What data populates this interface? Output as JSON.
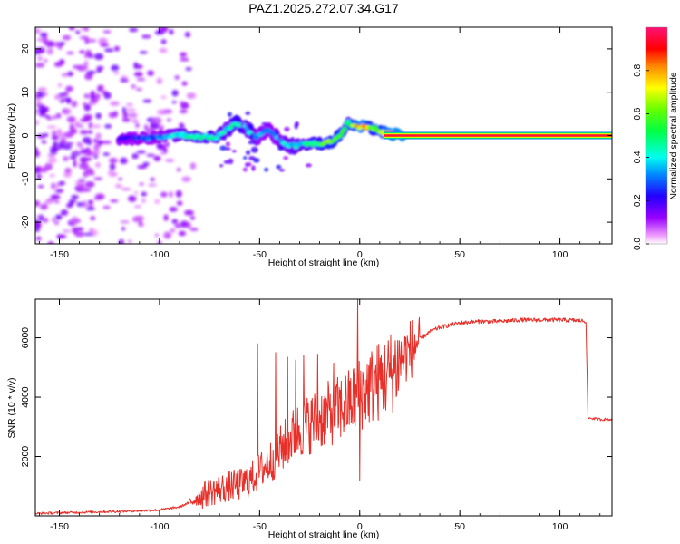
{
  "title": "PAZ1.2025.272.07.34.G17",
  "colors": {
    "snr_line": "#e8302a",
    "axis": "#000000"
  },
  "chart_data": [
    {
      "type": "heatmap",
      "name": "spectrogram",
      "xlabel": "Height of straight line (km)",
      "ylabel": "Frequency (Hz)",
      "xlim": [
        -162,
        126
      ],
      "ylim": [
        -25,
        25
      ],
      "x_ticks": [
        -150,
        -100,
        -50,
        0,
        50,
        100
      ],
      "y_ticks": [
        -20,
        -10,
        0,
        10,
        20
      ],
      "x_tick_labels": [
        "-150",
        "-100",
        "-50",
        "0",
        "50",
        "100"
      ],
      "y_tick_labels": [
        "-20",
        "-10",
        "0",
        "10",
        "20"
      ],
      "colorbar": {
        "label": "Normalized spectral amplitude",
        "range": [
          0,
          1
        ],
        "ticks": [
          0.0,
          0.2,
          0.4,
          0.6,
          0.8
        ],
        "tick_labels": [
          "0.0",
          "0.2",
          "0.4",
          "0.6",
          "0.8"
        ],
        "colormap": "hsv-reversed (magenta→blue→cyan→green→yellow→red→pink)"
      },
      "noise_region_x": [
        -162,
        -82
      ],
      "ridge": [
        {
          "x": -120,
          "y": -0.8,
          "amp": 0.2
        },
        {
          "x": -110,
          "y": -0.6,
          "amp": 0.3
        },
        {
          "x": -100,
          "y": -0.4,
          "amp": 0.35
        },
        {
          "x": -90,
          "y": 0.2,
          "amp": 0.45
        },
        {
          "x": -80,
          "y": -0.3,
          "amp": 0.55
        },
        {
          "x": -72,
          "y": -0.5,
          "amp": 0.5
        },
        {
          "x": -66,
          "y": 1.5,
          "amp": 0.45
        },
        {
          "x": -62,
          "y": 3.0,
          "amp": 0.6
        },
        {
          "x": -57,
          "y": 2.0,
          "amp": 0.5
        },
        {
          "x": -52,
          "y": -0.5,
          "amp": 0.4
        },
        {
          "x": -46,
          "y": 1.5,
          "amp": 0.35
        },
        {
          "x": -40,
          "y": -1.0,
          "amp": 0.4
        },
        {
          "x": -35,
          "y": -2.5,
          "amp": 0.45
        },
        {
          "x": -28,
          "y": -2.0,
          "amp": 0.5
        },
        {
          "x": -20,
          "y": -1.8,
          "amp": 0.6
        },
        {
          "x": -14,
          "y": -1.5,
          "amp": 0.7
        },
        {
          "x": -9,
          "y": 0.5,
          "amp": 0.65
        },
        {
          "x": -6,
          "y": 3.0,
          "amp": 0.5
        },
        {
          "x": -2,
          "y": 2.0,
          "amp": 0.85
        },
        {
          "x": 2,
          "y": 2.0,
          "amp": 0.9
        },
        {
          "x": 8,
          "y": 1.5,
          "amp": 0.6
        },
        {
          "x": 14,
          "y": 0.3,
          "amp": 0.9
        },
        {
          "x": 25,
          "y": 0.2,
          "amp": 0.95
        },
        {
          "x": 60,
          "y": 0.0,
          "amp": 1.0
        },
        {
          "x": 126,
          "y": 0.0,
          "amp": 1.0
        }
      ]
    },
    {
      "type": "line",
      "name": "snr",
      "xlabel": "Height of straight line (km)",
      "ylabel": "SNR (10 * v/v)",
      "xlim": [
        -162,
        126
      ],
      "ylim": [
        0,
        7300
      ],
      "x_ticks": [
        -150,
        -100,
        -50,
        0,
        50,
        100
      ],
      "y_ticks": [
        2000,
        4000,
        6000
      ],
      "x_tick_labels": [
        "-150",
        "-100",
        "-50",
        "0",
        "50",
        "100"
      ],
      "y_tick_labels": [
        "2000",
        "4000",
        "6000"
      ],
      "series": [
        {
          "name": "SNR",
          "x": [
            -162,
            -140,
            -120,
            -100,
            -90,
            -85,
            -80,
            -75,
            -70,
            -65,
            -60,
            -55,
            -50,
            -45,
            -40,
            -35,
            -30,
            -25,
            -20,
            -15,
            -10,
            -5,
            -2,
            0,
            2,
            5,
            10,
            15,
            20,
            25,
            30,
            35,
            40,
            50,
            60,
            70,
            80,
            90,
            100,
            110,
            113,
            114,
            120,
            126
          ],
          "y": [
            80,
            120,
            150,
            200,
            300,
            450,
            650,
            800,
            900,
            1000,
            1050,
            1200,
            1500,
            1800,
            2200,
            2600,
            2900,
            3100,
            3300,
            3450,
            3600,
            3800,
            4000,
            4100,
            4200,
            4350,
            4550,
            4800,
            5200,
            5600,
            5950,
            6200,
            6350,
            6500,
            6550,
            6550,
            6600,
            6600,
            6600,
            6580,
            6550,
            3300,
            3250,
            3250
          ]
        }
      ],
      "spikes": [
        {
          "x": -51,
          "y": 5800
        },
        {
          "x": -42,
          "y": 5500
        },
        {
          "x": -36,
          "y": 5350
        },
        {
          "x": -32,
          "y": 5250
        },
        {
          "x": -28,
          "y": 5400
        },
        {
          "x": -21,
          "y": 5450
        },
        {
          "x": -13,
          "y": 5150
        },
        {
          "x": -1,
          "y": 7300
        },
        {
          "x": 0,
          "y": 1200
        }
      ]
    }
  ]
}
